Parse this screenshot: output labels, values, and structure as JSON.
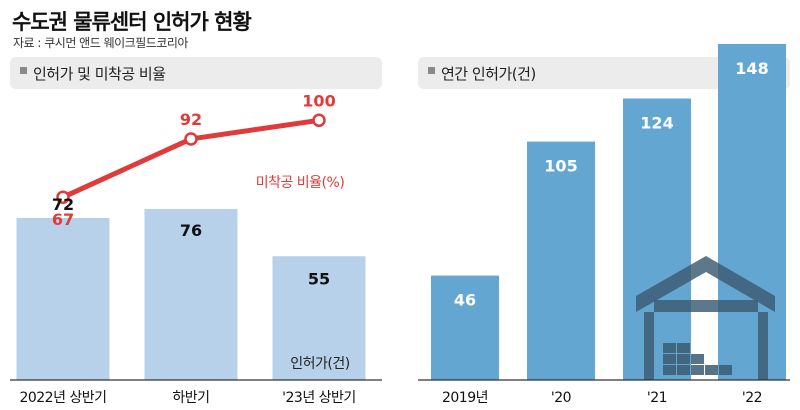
{
  "title": "수도권 물류센터 인허가 현황",
  "source": "자료 : 쿠시먼 앤드 웨이크필드코리아",
  "colors": {
    "bar_light": "#b7d1ea",
    "bar_blue": "#64a6d2",
    "line_red": "#e03a3a",
    "header_bg": "#ececec",
    "warehouse_dark": "#3a5a72"
  },
  "chart_data": [
    {
      "type": "bar",
      "header": "인허가 및 미착공 비율",
      "categories": [
        "2022년 상반기",
        "하반기",
        "'23년 상반기"
      ],
      "series": [
        {
          "name": "인허가(건)",
          "type": "bar",
          "values": [
            72,
            76,
            55
          ]
        },
        {
          "name": "미착공 비율(%)",
          "type": "line",
          "values": [
            67,
            92,
            100
          ]
        }
      ]
    },
    {
      "type": "bar",
      "header": "연간 인허가(건)",
      "categories": [
        "2019년",
        "'20",
        "'21",
        "'22"
      ],
      "values": [
        46,
        105,
        124,
        148
      ]
    }
  ]
}
